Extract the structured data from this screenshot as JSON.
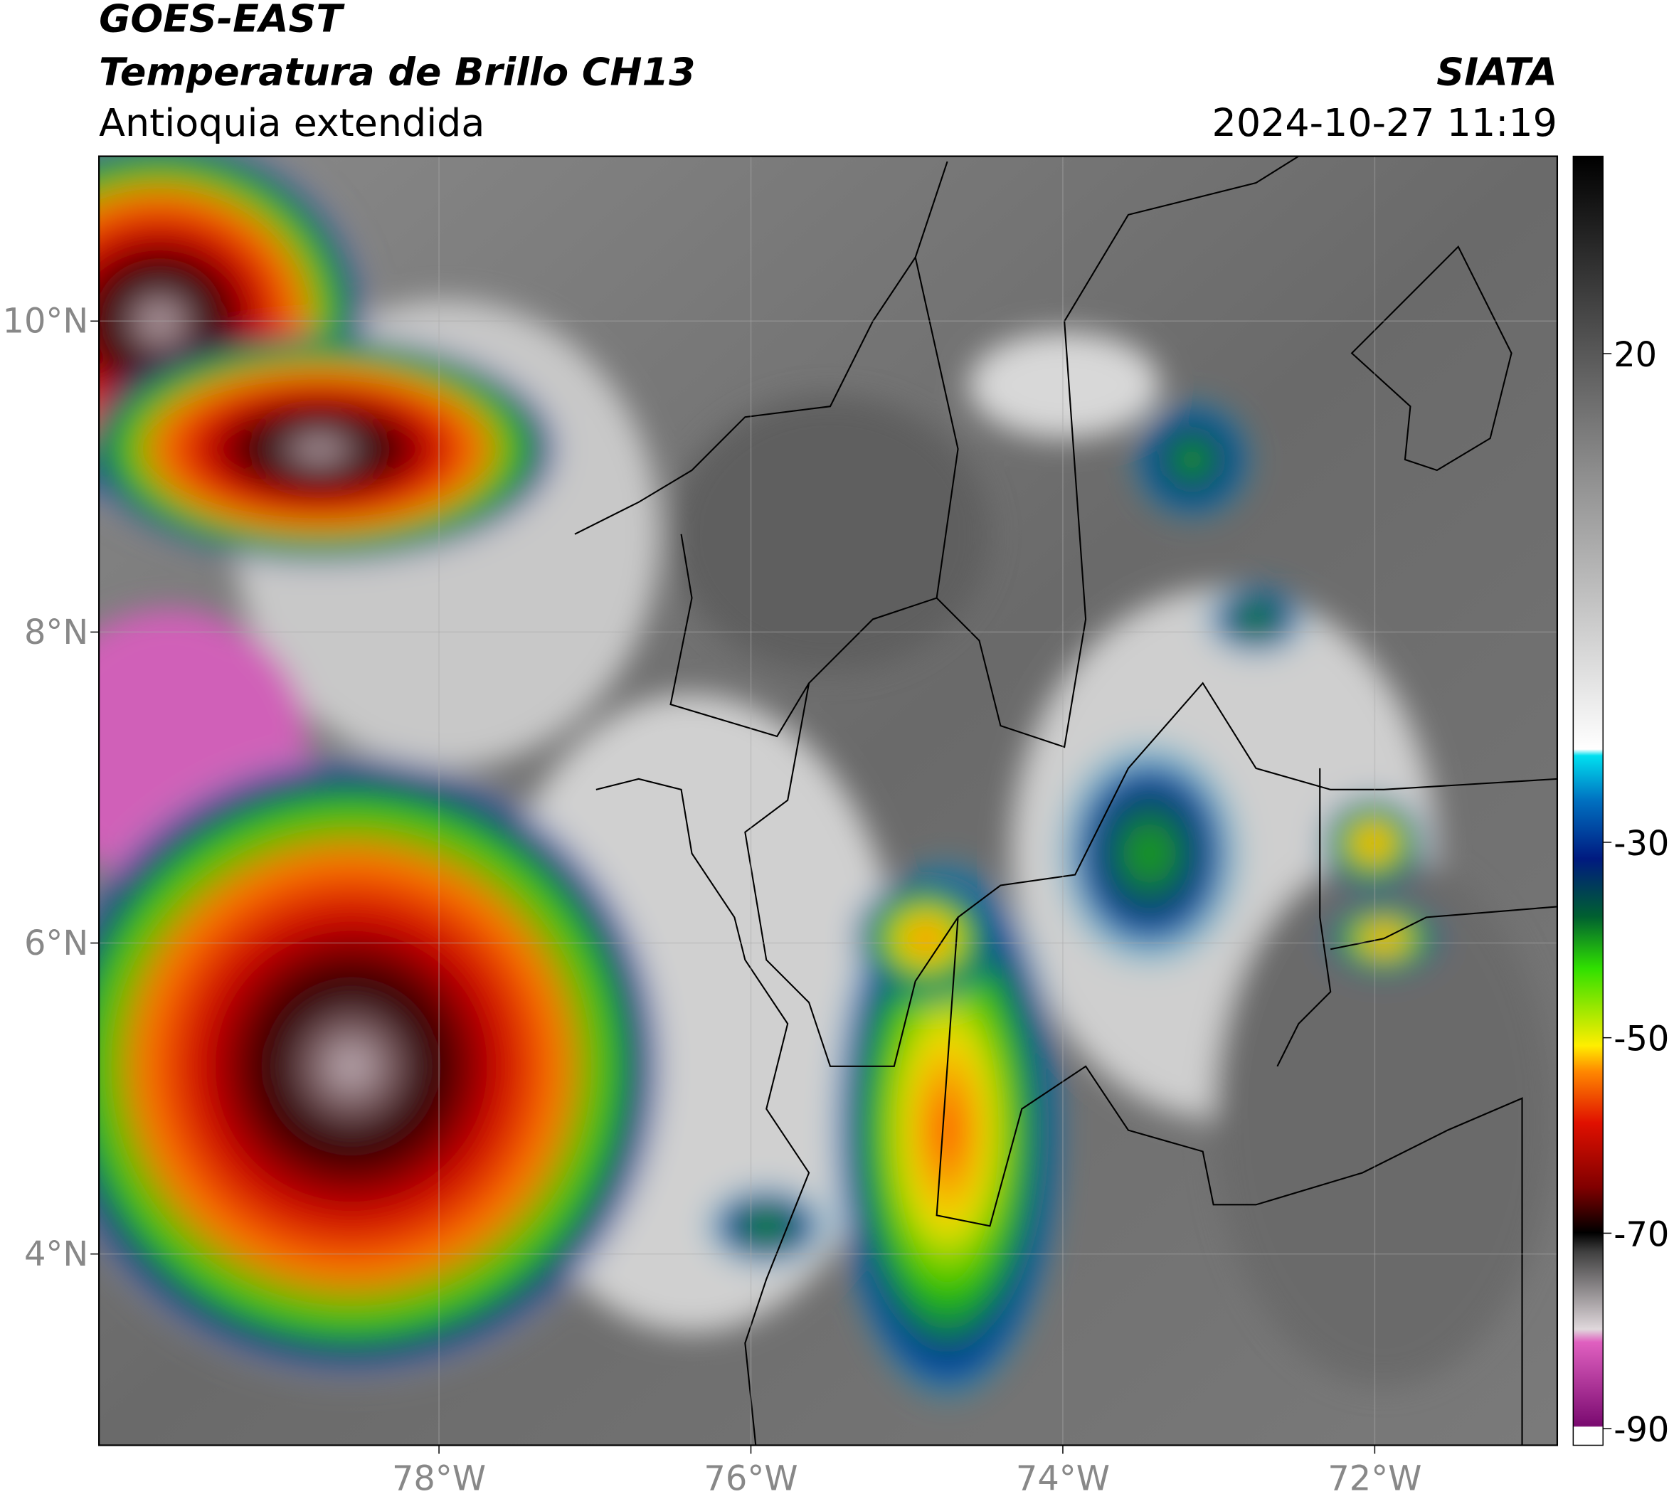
{
  "header": {
    "satellite": "GOES-EAST",
    "product": "Temperatura de Brillo CH13",
    "region": "Antioquia extendida",
    "source": "SIATA",
    "datetime": "2024-10-27 11:19"
  },
  "map": {
    "xlim": [
      -80.18,
      -70.83
    ],
    "ylim": [
      2.77,
      11.06
    ],
    "xticks": [
      {
        "value": -78,
        "label": "78°W"
      },
      {
        "value": -76,
        "label": "76°W"
      },
      {
        "value": -74,
        "label": "74°W"
      },
      {
        "value": -72,
        "label": "72°W"
      }
    ],
    "yticks": [
      {
        "value": 4,
        "label": "4°N"
      },
      {
        "value": 6,
        "label": "6°N"
      },
      {
        "value": 8,
        "label": "8°N"
      },
      {
        "value": 10,
        "label": "10°N"
      }
    ],
    "grid": true
  },
  "colorbar": {
    "clim": [
      -91.7,
      40.2
    ],
    "ticks": [
      20,
      -30,
      -50,
      -70,
      -90
    ]
  }
}
